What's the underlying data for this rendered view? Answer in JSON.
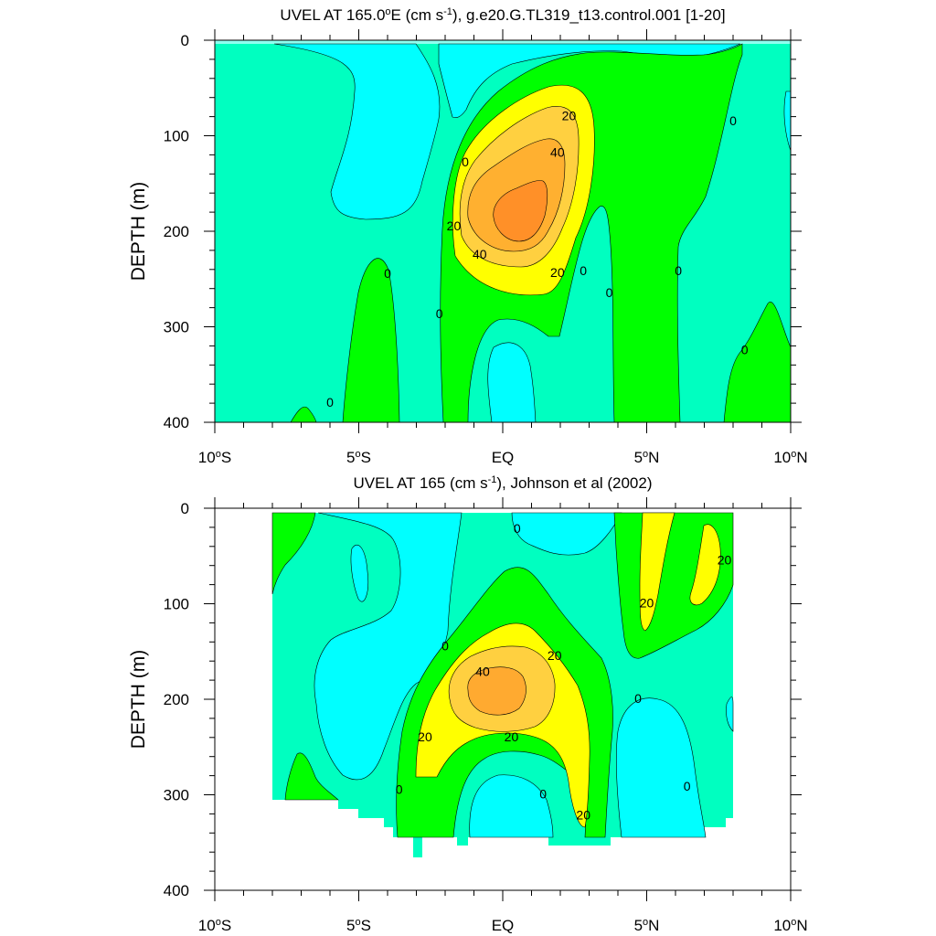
{
  "colors": {
    "negative": "#00FFFF",
    "c0_10": "#00FFC0",
    "c10_20": "#00FF00",
    "c20_30": "#FFFF00",
    "c30_40": "#FFD040",
    "c40_50": "#FFA030",
    "c50plus": "#FF8C28",
    "line": "#000000"
  },
  "chart_data": [
    {
      "type": "contour",
      "title_main": "UVEL AT 165.0",
      "title_degree": "o",
      "title_units_pre": "E (cm s",
      "title_units_exp": "-1",
      "title_rest": "), g.e20.G.TL319_t13.control.001 [1-20]",
      "ylabel": "DEPTH (m)",
      "ylim": [
        400,
        0
      ],
      "xlim": [
        -10,
        10
      ],
      "y_ticks": [
        "0",
        "100",
        "200",
        "300",
        "400"
      ],
      "x_ticks": [
        {
          "value": "10",
          "sup": "o",
          "hemi": "S"
        },
        {
          "value": "5",
          "sup": "o",
          "hemi": "S"
        },
        {
          "value": "EQ",
          "sup": "",
          "hemi": ""
        },
        {
          "value": "5",
          "sup": "o",
          "hemi": "N"
        },
        {
          "value": "10",
          "sup": "o",
          "hemi": "N"
        }
      ],
      "contour_levels": [
        0,
        10,
        20,
        30,
        40,
        50
      ],
      "contour_labels": [
        {
          "text": "20",
          "lat": 2.3,
          "depth": 80
        },
        {
          "text": "40",
          "lat": 1.9,
          "depth": 118
        },
        {
          "text": "0",
          "lat": -1.3,
          "depth": 128
        },
        {
          "text": "20",
          "lat": -1.7,
          "depth": 195
        },
        {
          "text": "40",
          "lat": -0.8,
          "depth": 225
        },
        {
          "text": "20",
          "lat": 1.9,
          "depth": 244
        },
        {
          "text": "0",
          "lat": 2.8,
          "depth": 242
        },
        {
          "text": "0",
          "lat": 3.7,
          "depth": 265
        },
        {
          "text": "0",
          "lat": 6.1,
          "depth": 242
        },
        {
          "text": "0",
          "lat": 8.0,
          "depth": 85
        },
        {
          "text": "0",
          "lat": -4.0,
          "depth": 245
        },
        {
          "text": "0",
          "lat": -2.2,
          "depth": 287
        },
        {
          "text": "0",
          "lat": 8.4,
          "depth": 325
        },
        {
          "text": "0",
          "lat": -6.0,
          "depth": 380
        }
      ]
    },
    {
      "type": "contour",
      "title_main": "UVEL AT 165 (cm s",
      "title_units_exp": "-1",
      "title_rest": "), Johnson et al (2002)",
      "ylabel": "DEPTH (m)",
      "ylim": [
        400,
        0
      ],
      "xlim": [
        -10,
        10
      ],
      "data_lat_range": [
        -8,
        8
      ],
      "y_ticks": [
        "0",
        "100",
        "200",
        "300",
        "400"
      ],
      "x_ticks": [
        {
          "value": "10",
          "sup": "o",
          "hemi": "S"
        },
        {
          "value": "5",
          "sup": "o",
          "hemi": "S"
        },
        {
          "value": "EQ",
          "sup": "",
          "hemi": ""
        },
        {
          "value": "5",
          "sup": "o",
          "hemi": "N"
        },
        {
          "value": "10",
          "sup": "o",
          "hemi": "N"
        }
      ],
      "contour_levels": [
        0,
        10,
        20,
        30,
        40
      ],
      "contour_labels": [
        {
          "text": "0",
          "lat": 0.5,
          "depth": 22
        },
        {
          "text": "20",
          "lat": 7.7,
          "depth": 55
        },
        {
          "text": "20",
          "lat": 5.0,
          "depth": 100
        },
        {
          "text": "0",
          "lat": -2.0,
          "depth": 145
        },
        {
          "text": "20",
          "lat": 1.8,
          "depth": 155
        },
        {
          "text": "40",
          "lat": -0.7,
          "depth": 172
        },
        {
          "text": "0",
          "lat": 4.7,
          "depth": 200
        },
        {
          "text": "20",
          "lat": -2.7,
          "depth": 240
        },
        {
          "text": "20",
          "lat": 0.3,
          "depth": 240
        },
        {
          "text": "0",
          "lat": -3.6,
          "depth": 295
        },
        {
          "text": "0",
          "lat": 1.4,
          "depth": 300
        },
        {
          "text": "20",
          "lat": 2.8,
          "depth": 322
        },
        {
          "text": "0",
          "lat": 6.4,
          "depth": 292
        }
      ]
    }
  ]
}
